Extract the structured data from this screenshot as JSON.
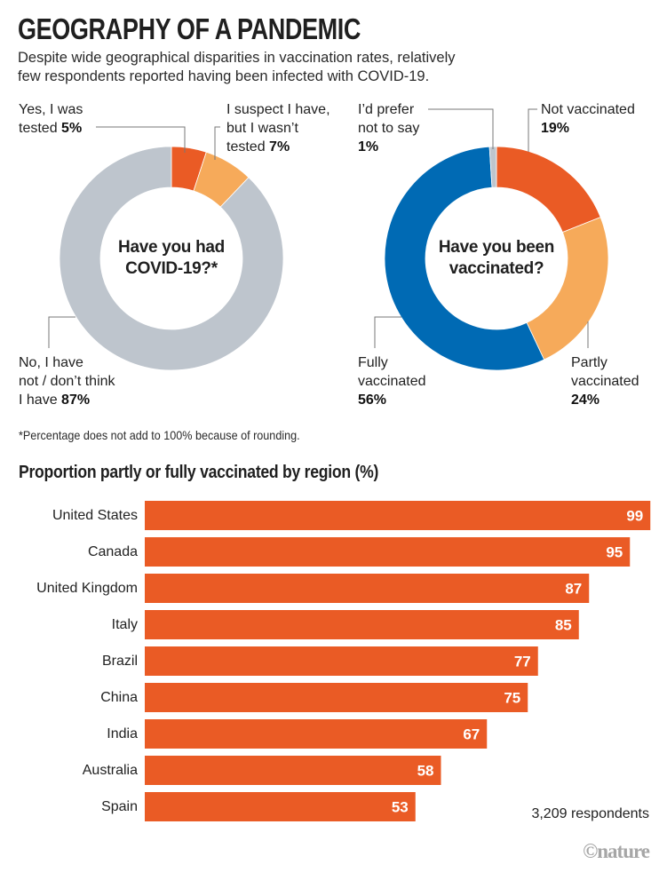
{
  "header": {
    "title": "GEOGRAPHY OF A PANDEMIC",
    "subtitle_line1": "Despite wide geographical disparities in vaccination rates, relatively",
    "subtitle_line2": "few respondents reported having been infected with COVID-19."
  },
  "footnote": "*Percentage does not add to 100% because of rounding.",
  "respondents": "3,209 respondents",
  "credit": "©nature",
  "colors": {
    "orange_dark": "#ea5b25",
    "orange_light": "#f6aa5a",
    "grey": "#bec5cd",
    "blue": "#006ab4"
  },
  "chart_data": [
    {
      "type": "pie",
      "variant": "donut",
      "title": "Have you had COVID-19?*",
      "title_line1": "Have you had",
      "title_line2": "COVID-19?*",
      "slices": [
        {
          "label": "Yes, I was tested",
          "label_line1": "Yes, I was",
          "label_line2": "tested",
          "value": 5,
          "value_text": "5%",
          "color": "#ea5b25"
        },
        {
          "label": "I suspect I have, but I wasn't tested",
          "label_line1": "I suspect I have,",
          "label_line2": "but I wasn’t",
          "label_line3": "tested",
          "value": 7,
          "value_text": "7%",
          "color": "#f6aa5a"
        },
        {
          "label": "No, I have not / don't think I have",
          "label_line1": "No, I have",
          "label_line2": "not / don’t think",
          "label_line3": "I have",
          "value": 87,
          "value_text": "87%",
          "color": "#bec5cd"
        }
      ]
    },
    {
      "type": "pie",
      "variant": "donut",
      "title": "Have you been vaccinated?",
      "title_line1": "Have you been",
      "title_line2": "vaccinated?",
      "slices": [
        {
          "label": "Not vaccinated",
          "label_line1": "Not vaccinated",
          "value": 19,
          "value_text": "19%",
          "color": "#ea5b25"
        },
        {
          "label": "Partly vaccinated",
          "label_line1": "Partly",
          "label_line2": "vaccinated",
          "value": 24,
          "value_text": "24%",
          "color": "#f6aa5a"
        },
        {
          "label": "Fully vaccinated",
          "label_line1": "Fully",
          "label_line2": "vaccinated",
          "value": 56,
          "value_text": "56%",
          "color": "#006ab4"
        },
        {
          "label": "I'd prefer not to say",
          "label_line1": "I’d prefer",
          "label_line2": "not to say",
          "value": 1,
          "value_text": "1%",
          "color": "#bec5cd"
        }
      ]
    },
    {
      "type": "bar",
      "orientation": "horizontal",
      "title": "Proportion partly or fully vaccinated by region (%)",
      "categories": [
        "United States",
        "Canada",
        "United Kingdom",
        "Italy",
        "Brazil",
        "China",
        "India",
        "Australia",
        "Spain"
      ],
      "values": [
        99,
        95,
        87,
        85,
        77,
        75,
        67,
        58,
        53
      ],
      "xlim": [
        0,
        100
      ],
      "color": "#ea5b25",
      "grid": false
    }
  ]
}
